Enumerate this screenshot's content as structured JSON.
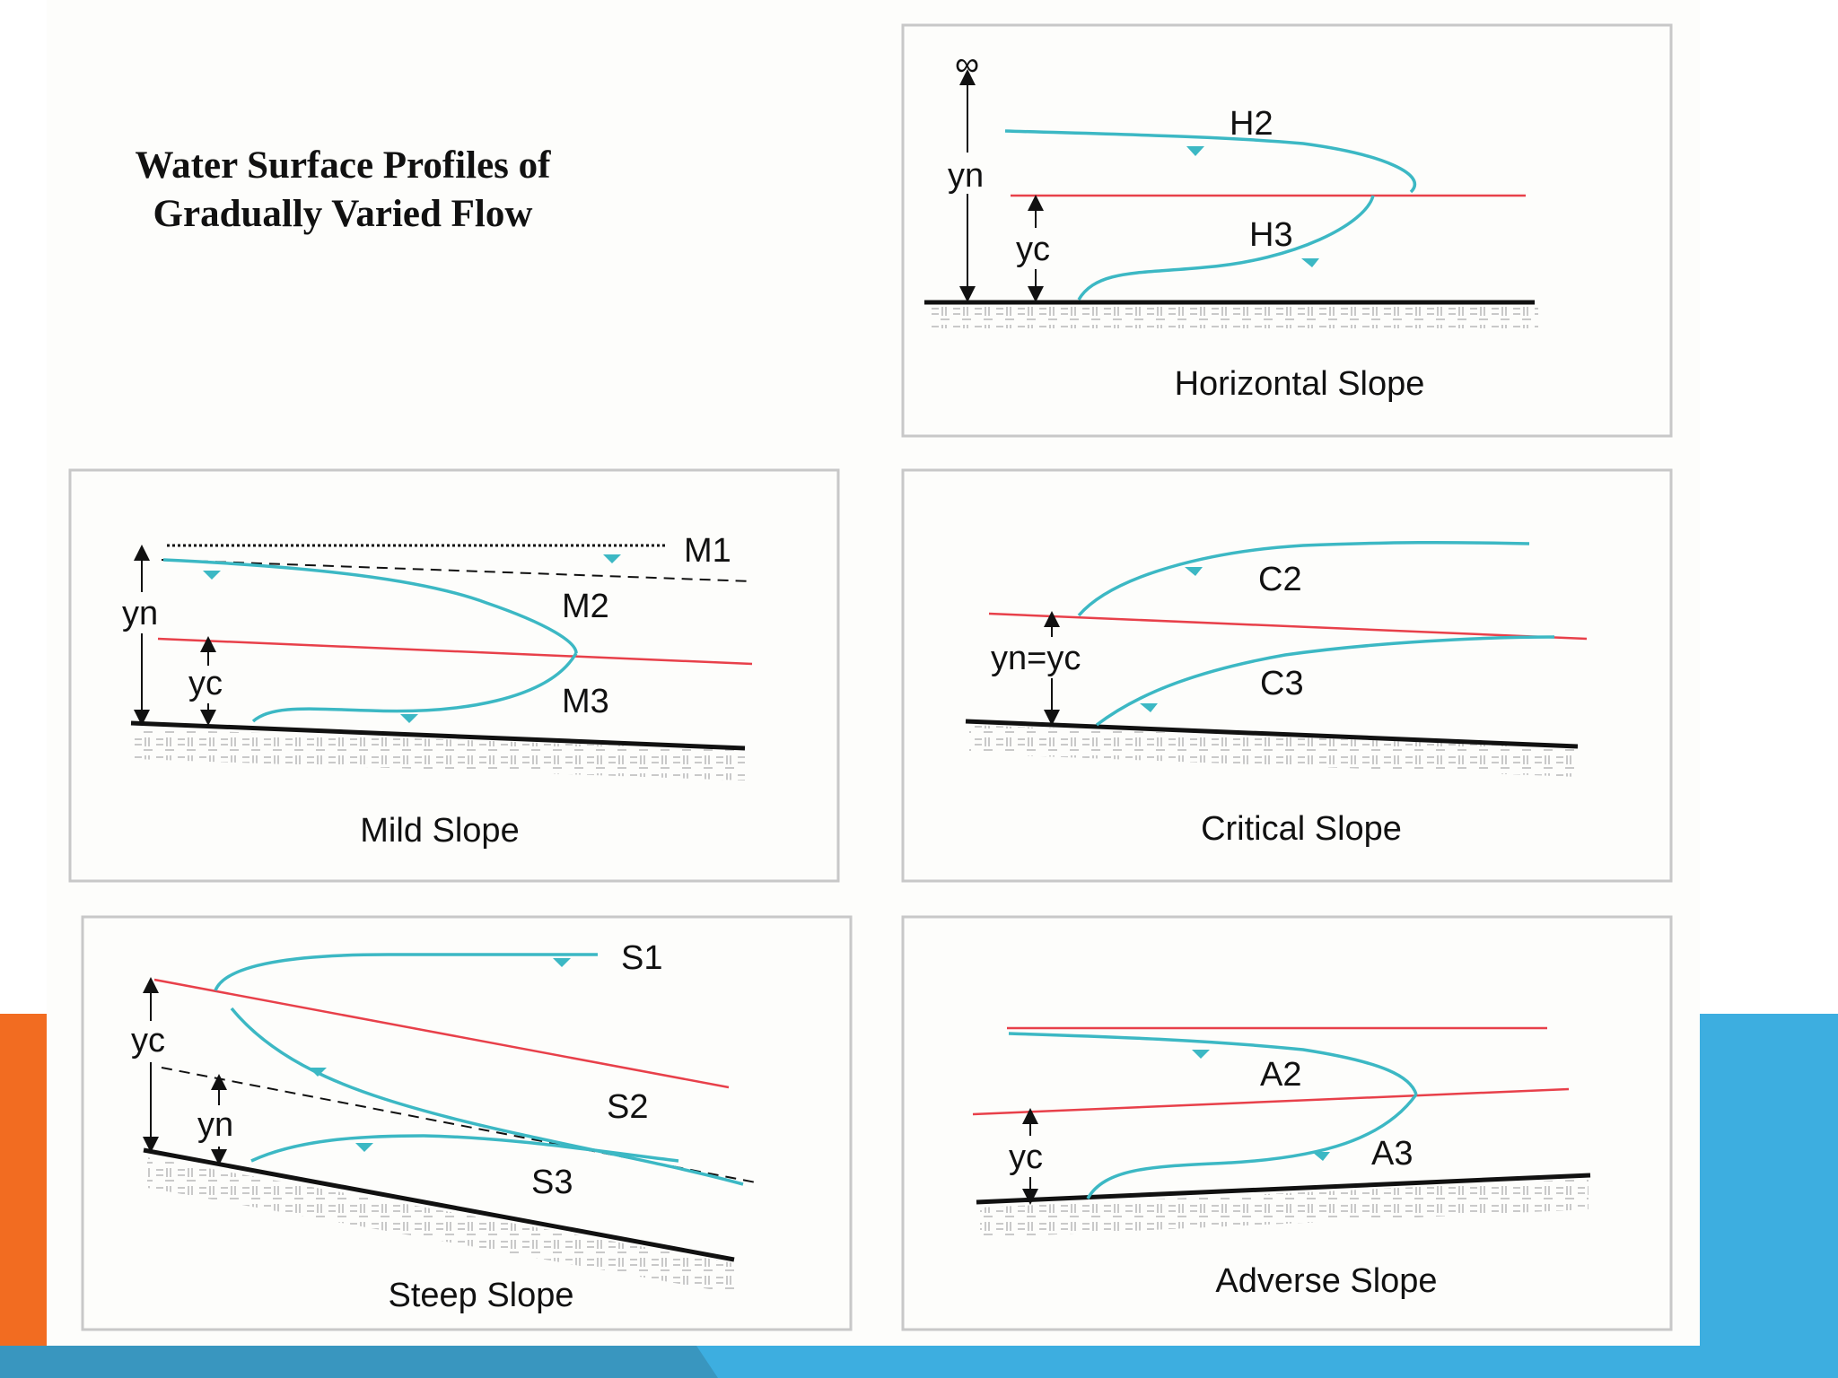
{
  "title": "Water Surface Profiles of Gradually Varied Flow",
  "panels": {
    "horizontal": {
      "caption": "Horizontal Slope",
      "curves": [
        "H2",
        "H3"
      ],
      "dims": {
        "infinity": "∞",
        "yn": "yn",
        "yc": "yc"
      }
    },
    "mild": {
      "caption": "Mild Slope",
      "curves": [
        "M1",
        "M2",
        "M3"
      ],
      "dims": {
        "yn": "yn",
        "yc": "yc"
      }
    },
    "critical": {
      "caption": "Critical Slope",
      "curves": [
        "C2",
        "C3"
      ],
      "dims": {
        "yn_yc": "yn=yc"
      }
    },
    "steep": {
      "caption": "Steep Slope",
      "curves": [
        "S1",
        "S2",
        "S3"
      ],
      "dims": {
        "yc": "yc",
        "yn": "yn"
      }
    },
    "adverse": {
      "caption": "Adverse Slope",
      "curves": [
        "A2",
        "A3"
      ],
      "dims": {
        "yc": "yc"
      }
    }
  },
  "colors": {
    "water_surface": "#3cb8c4",
    "critical_depth_line": "#e8404a",
    "channel_bed": "#111111",
    "panel_border": "#c8c8c8",
    "accent_orange": "#f26c21",
    "accent_blue": "#3daee0"
  },
  "icons": [
    "water-surface-marker-icon",
    "dimension-arrow-icon",
    "bed-hatch-pattern"
  ]
}
